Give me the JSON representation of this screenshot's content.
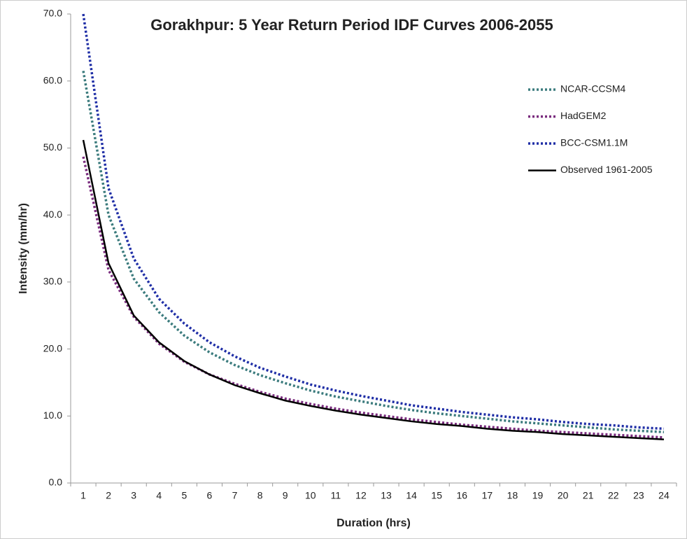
{
  "chart_data": {
    "type": "line",
    "title": "Gorakhpur: 5 Year Return Period IDF Curves 2006-2055",
    "x_label": "Duration (hrs)",
    "y_label": "Intensity (mm/hr)",
    "categories": [
      1,
      2,
      3,
      4,
      5,
      6,
      7,
      8,
      9,
      10,
      11,
      12,
      13,
      14,
      15,
      16,
      17,
      18,
      19,
      20,
      21,
      22,
      23,
      24
    ],
    "ylim": [
      0,
      70
    ],
    "yticks": [
      {
        "value": 0,
        "label": "0.0"
      },
      {
        "value": 10,
        "label": "10.0"
      },
      {
        "value": 20,
        "label": "20.0"
      },
      {
        "value": 30,
        "label": "30.0"
      },
      {
        "value": 40,
        "label": "40.0"
      },
      {
        "value": 50,
        "label": "50.0"
      },
      {
        "value": 60,
        "label": "60.0"
      },
      {
        "value": 70,
        "label": "70.0"
      }
    ],
    "grid": false,
    "legend": "upper right",
    "series": [
      {
        "name": "NCAR-CCSM4",
        "color": "#3b7b7d",
        "style": "dotted",
        "values": [
          61.5,
          40.0,
          30.5,
          25.5,
          22.0,
          19.5,
          17.6,
          16.1,
          14.9,
          13.8,
          12.9,
          12.2,
          11.5,
          10.9,
          10.4,
          10.0,
          9.6,
          9.2,
          8.9,
          8.6,
          8.3,
          8.0,
          7.8,
          7.6
        ]
      },
      {
        "name": "HadGEM2",
        "color": "#7a2c7e",
        "style": "dotted",
        "values": [
          48.7,
          31.8,
          24.8,
          20.8,
          18.1,
          16.2,
          14.8,
          13.6,
          12.6,
          11.8,
          11.1,
          10.5,
          10.0,
          9.5,
          9.1,
          8.7,
          8.4,
          8.1,
          7.8,
          7.6,
          7.4,
          7.2,
          7.0,
          6.8
        ]
      },
      {
        "name": "BCC-CSM1.1M",
        "color": "#1f2ea6",
        "style": "dotted",
        "values": [
          70.0,
          44.0,
          33.5,
          27.5,
          23.8,
          21.0,
          18.9,
          17.2,
          15.9,
          14.7,
          13.8,
          13.0,
          12.3,
          11.6,
          11.1,
          10.6,
          10.2,
          9.8,
          9.5,
          9.1,
          8.8,
          8.6,
          8.3,
          8.1
        ]
      },
      {
        "name": "Observed 1961-2005",
        "color": "#000000",
        "style": "solid",
        "values": [
          51.2,
          32.8,
          25.0,
          21.0,
          18.2,
          16.2,
          14.6,
          13.4,
          12.3,
          11.5,
          10.8,
          10.2,
          9.7,
          9.2,
          8.8,
          8.5,
          8.1,
          7.8,
          7.6,
          7.3,
          7.1,
          6.9,
          6.7,
          6.5
        ]
      }
    ]
  }
}
